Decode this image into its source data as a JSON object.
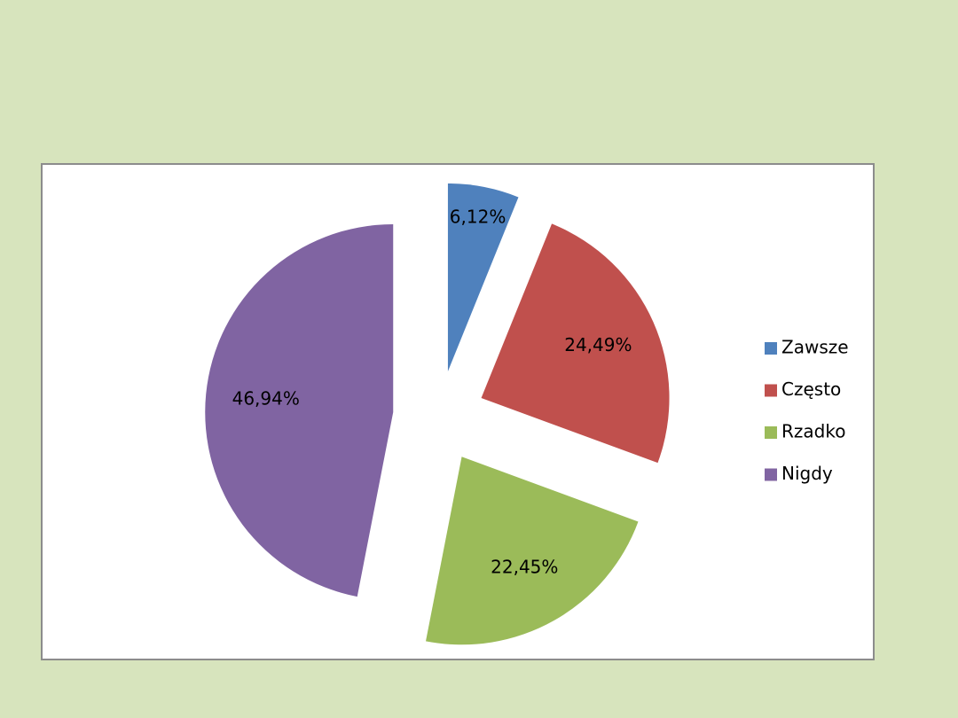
{
  "chart_data": {
    "type": "pie",
    "categories": [
      "Zawsze",
      "Często",
      "Rzadko",
      "Nigdy"
    ],
    "values": [
      6.12,
      24.49,
      22.45,
      46.94
    ],
    "value_labels": [
      "6,12%",
      "24,49%",
      "22,45%",
      "46,94%"
    ],
    "colors": [
      "#4f81bd",
      "#c0504d",
      "#9bbb59",
      "#8064a2"
    ],
    "legend": "right"
  }
}
